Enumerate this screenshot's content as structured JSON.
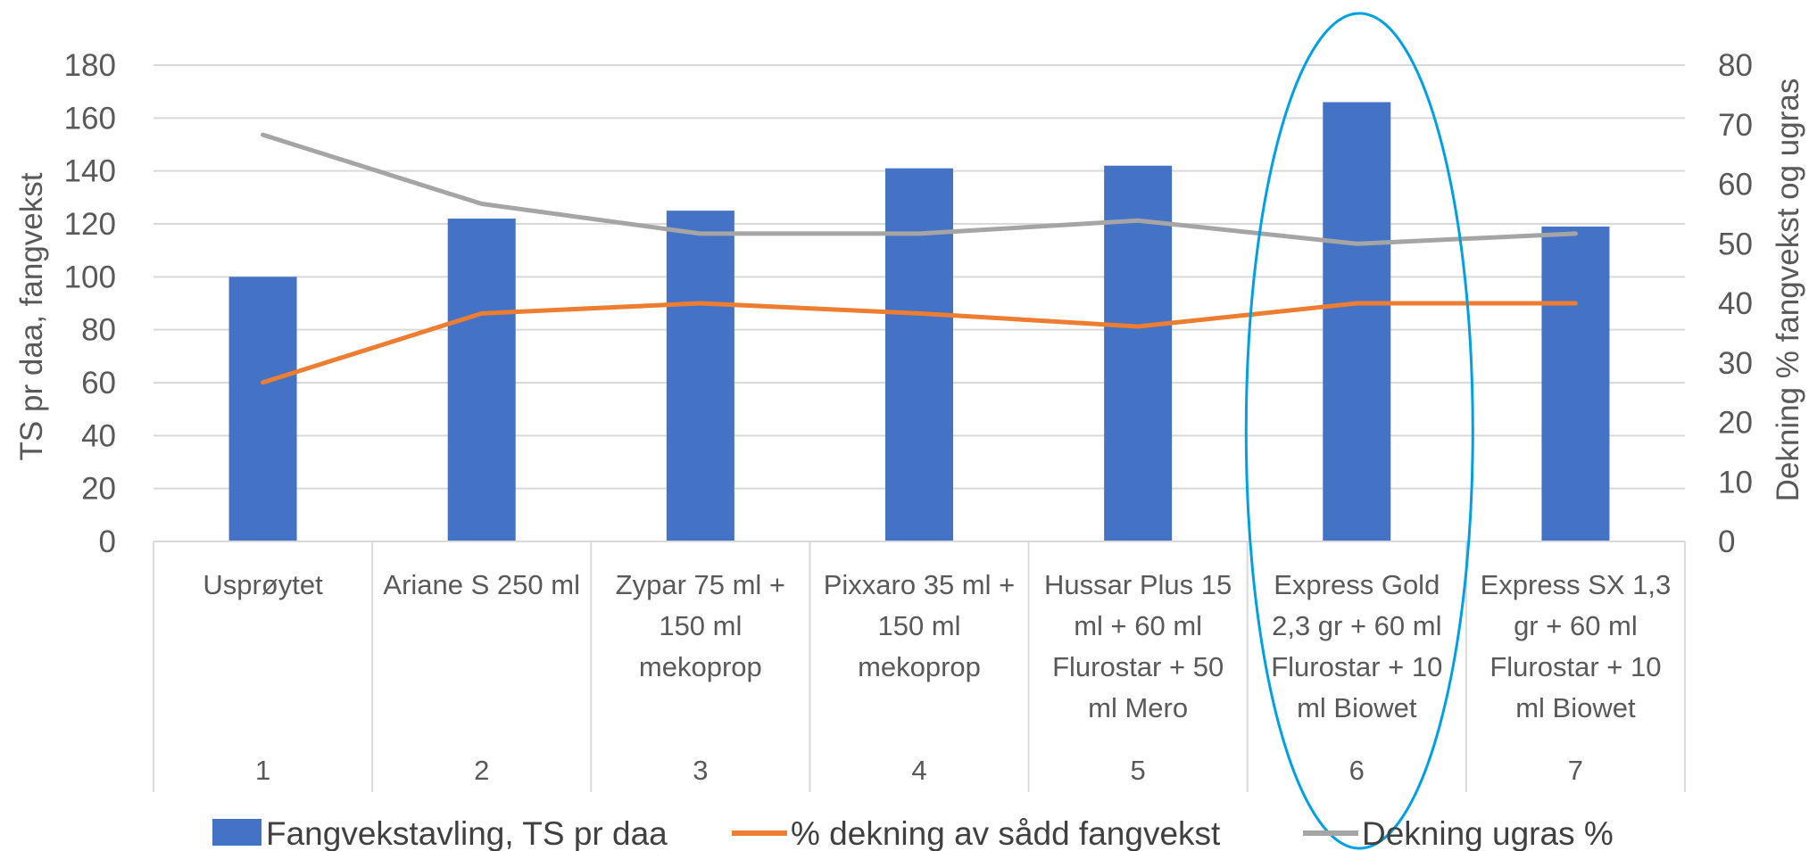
{
  "chart_data": {
    "type": "bar",
    "categories": [
      {
        "number": "1",
        "lines": [
          "Usprøytet"
        ]
      },
      {
        "number": "2",
        "lines": [
          "Ariane S 250 ml"
        ]
      },
      {
        "number": "3",
        "lines": [
          "Zypar 75 ml +",
          "150 ml",
          "mekoprop"
        ]
      },
      {
        "number": "4",
        "lines": [
          "Pixxaro 35 ml +",
          "150 ml",
          "mekoprop"
        ]
      },
      {
        "number": "5",
        "lines": [
          "Hussar Plus 15",
          "ml + 60 ml",
          "Flurostar + 50",
          "ml Mero"
        ]
      },
      {
        "number": "6",
        "lines": [
          "Express Gold",
          "2,3 gr + 60 ml",
          "Flurostar + 10",
          "ml Biowet"
        ]
      },
      {
        "number": "7",
        "lines": [
          "Express SX 1,3",
          "gr + 60 ml",
          "Flurostar + 10",
          "ml Biowet"
        ]
      }
    ],
    "series": [
      {
        "name": "Fangvekstavling, TS pr daa",
        "type": "bar",
        "axis": "left",
        "color": "#4472C4",
        "values": [
          100,
          122,
          125,
          141,
          142,
          166,
          119
        ]
      },
      {
        "name": "% dekning av sådd fangvekst",
        "type": "line",
        "axis": "right",
        "color": "#ED7D31",
        "values": [
          26.7,
          38.3,
          40,
          38.3,
          36.1,
          40,
          40
        ]
      },
      {
        "name": "Dekning ugras %",
        "type": "line",
        "axis": "right",
        "color": "#A5A5A5",
        "values": [
          68.3,
          56.7,
          51.7,
          51.7,
          53.9,
          50,
          51.7
        ]
      }
    ],
    "ylabel": "TS pr daa, fangvekst",
    "y2label": "Dekning % fangvekst og ugras",
    "ylim": [
      0,
      180
    ],
    "yticks": [
      0,
      20,
      40,
      60,
      80,
      100,
      120,
      140,
      160,
      180
    ],
    "y2lim": [
      0,
      80
    ],
    "y2ticks": [
      0,
      10,
      20,
      30,
      40,
      50,
      60,
      70,
      80
    ],
    "grid": true,
    "legend_position": "bottom",
    "highlight": {
      "category_index": 5,
      "shape": "ellipse",
      "color": "#00A0E3"
    }
  }
}
